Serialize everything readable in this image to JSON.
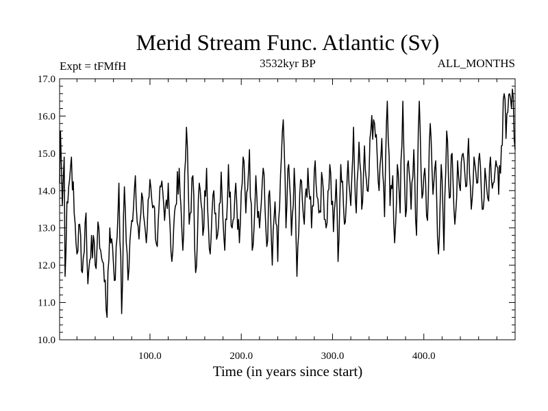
{
  "chart_data": {
    "type": "line",
    "title": "Merid Stream Func. Atlantic (Sv)",
    "subtitle_left": "Expt = tFMfH",
    "subtitle_center": "3532kyr BP",
    "subtitle_right": "ALL_MONTHS",
    "xlabel": "Time (in years since start)",
    "ylabel": "",
    "xlim": [
      1,
      500
    ],
    "ylim": [
      10,
      17
    ],
    "xticks": [
      100,
      200,
      300,
      400
    ],
    "xtick_labels": [
      "100.0",
      "200.0",
      "300.0",
      "400.0"
    ],
    "yticks": [
      10,
      11,
      12,
      13,
      14,
      15,
      16,
      17
    ],
    "ytick_labels": [
      "10.0",
      "11.0",
      "12.0",
      "13.0",
      "14.0",
      "15.0",
      "16.0",
      "17.0"
    ],
    "grid": false,
    "series": [
      {
        "name": "Merid Stream Func. Atlantic",
        "keypoints": [
          [
            1,
            14.2
          ],
          [
            2,
            15.6
          ],
          [
            4,
            13.6
          ],
          [
            6,
            14.9
          ],
          [
            7,
            11.7
          ],
          [
            9,
            13.7
          ],
          [
            11,
            14.1
          ],
          [
            14,
            14.9
          ],
          [
            17,
            13.4
          ],
          [
            20,
            12.3
          ],
          [
            23,
            13.1
          ],
          [
            26,
            11.8
          ],
          [
            30,
            13.4
          ],
          [
            32,
            11.5
          ],
          [
            36,
            12.8
          ],
          [
            40,
            12.0
          ],
          [
            44,
            13.0
          ],
          [
            47,
            12.2
          ],
          [
            51,
            11.6
          ],
          [
            53,
            10.6
          ],
          [
            56,
            13.0
          ],
          [
            59,
            12.5
          ],
          [
            62,
            11.6
          ],
          [
            66,
            14.2
          ],
          [
            69,
            10.7
          ],
          [
            72,
            14.1
          ],
          [
            76,
            11.6
          ],
          [
            80,
            13.2
          ],
          [
            84,
            14.4
          ],
          [
            88,
            12.7
          ],
          [
            92,
            13.8
          ],
          [
            96,
            12.6
          ],
          [
            100,
            14.3
          ],
          [
            104,
            13.6
          ],
          [
            108,
            12.5
          ],
          [
            112,
            14.1
          ],
          [
            116,
            13.2
          ],
          [
            120,
            14.2
          ],
          [
            124,
            12.1
          ],
          [
            128,
            13.6
          ],
          [
            132,
            14.6
          ],
          [
            136,
            12.4
          ],
          [
            140,
            15.7
          ],
          [
            143,
            13.1
          ],
          [
            147,
            14.4
          ],
          [
            150,
            11.8
          ],
          [
            154,
            14.2
          ],
          [
            158,
            12.8
          ],
          [
            162,
            14.6
          ],
          [
            166,
            12.3
          ],
          [
            170,
            14.0
          ],
          [
            174,
            12.8
          ],
          [
            178,
            14.5
          ],
          [
            182,
            12.4
          ],
          [
            186,
            14.7
          ],
          [
            190,
            13.0
          ],
          [
            194,
            14.2
          ],
          [
            198,
            12.6
          ],
          [
            202,
            14.9
          ],
          [
            205,
            13.4
          ],
          [
            209,
            15.1
          ],
          [
            212,
            12.4
          ],
          [
            216,
            14.4
          ],
          [
            220,
            13.0
          ],
          [
            224,
            14.6
          ],
          [
            228,
            12.5
          ],
          [
            231,
            14.0
          ],
          [
            234,
            12.0
          ],
          [
            237,
            13.7
          ],
          [
            240,
            12.1
          ],
          [
            243,
            14.4
          ],
          [
            246,
            15.9
          ],
          [
            249,
            13.0
          ],
          [
            252,
            14.7
          ],
          [
            255,
            12.8
          ],
          [
            258,
            14.6
          ],
          [
            261,
            11.7
          ],
          [
            265,
            14.3
          ],
          [
            269,
            13.1
          ],
          [
            273,
            14.6
          ],
          [
            277,
            13.0
          ],
          [
            281,
            14.8
          ],
          [
            285,
            13.4
          ],
          [
            289,
            14.3
          ],
          [
            293,
            13.0
          ],
          [
            297,
            14.7
          ],
          [
            301,
            12.9
          ],
          [
            304,
            14.3
          ],
          [
            306,
            12.1
          ],
          [
            309,
            14.7
          ],
          [
            313,
            13.1
          ],
          [
            317,
            14.8
          ],
          [
            320,
            13.6
          ],
          [
            323,
            15.7
          ],
          [
            326,
            13.4
          ],
          [
            329,
            15.3
          ],
          [
            332,
            13.5
          ],
          [
            335,
            15.2
          ],
          [
            338,
            14.0
          ],
          [
            342,
            15.6
          ],
          [
            345,
            15.9
          ],
          [
            348,
            15.5
          ],
          [
            351,
            14.0
          ],
          [
            354,
            15.4
          ],
          [
            357,
            13.3
          ],
          [
            360,
            16.4
          ],
          [
            363,
            13.6
          ],
          [
            366,
            14.4
          ],
          [
            368,
            12.6
          ],
          [
            371,
            14.7
          ],
          [
            374,
            13.4
          ],
          [
            377,
            16.4
          ],
          [
            380,
            13.3
          ],
          [
            383,
            14.8
          ],
          [
            386,
            13.5
          ],
          [
            389,
            15.1
          ],
          [
            392,
            12.8
          ],
          [
            395,
            16.4
          ],
          [
            398,
            13.8
          ],
          [
            401,
            14.6
          ],
          [
            404,
            13.2
          ],
          [
            407,
            15.8
          ],
          [
            410,
            13.9
          ],
          [
            413,
            14.8
          ],
          [
            416,
            12.3
          ],
          [
            419,
            14.7
          ],
          [
            422,
            12.4
          ],
          [
            425,
            15.6
          ],
          [
            428,
            13.8
          ],
          [
            431,
            15.0
          ],
          [
            434,
            13.1
          ],
          [
            437,
            14.8
          ],
          [
            440,
            14.0
          ],
          [
            443,
            15.0
          ],
          [
            446,
            14.1
          ],
          [
            449,
            15.4
          ],
          [
            452,
            13.5
          ],
          [
            455,
            14.9
          ],
          [
            458,
            14.2
          ],
          [
            461,
            15.0
          ],
          [
            464,
            13.5
          ],
          [
            467,
            14.6
          ],
          [
            470,
            13.8
          ],
          [
            473,
            14.9
          ],
          [
            476,
            14.2
          ],
          [
            479,
            14.8
          ],
          [
            482,
            13.9
          ],
          [
            485,
            15.2
          ],
          [
            488,
            16.6
          ],
          [
            490,
            15.4
          ],
          [
            492,
            16.1
          ],
          [
            494,
            16.6
          ],
          [
            496,
            16.2
          ],
          [
            498,
            16.5
          ],
          [
            500,
            15.1
          ]
        ]
      }
    ]
  }
}
